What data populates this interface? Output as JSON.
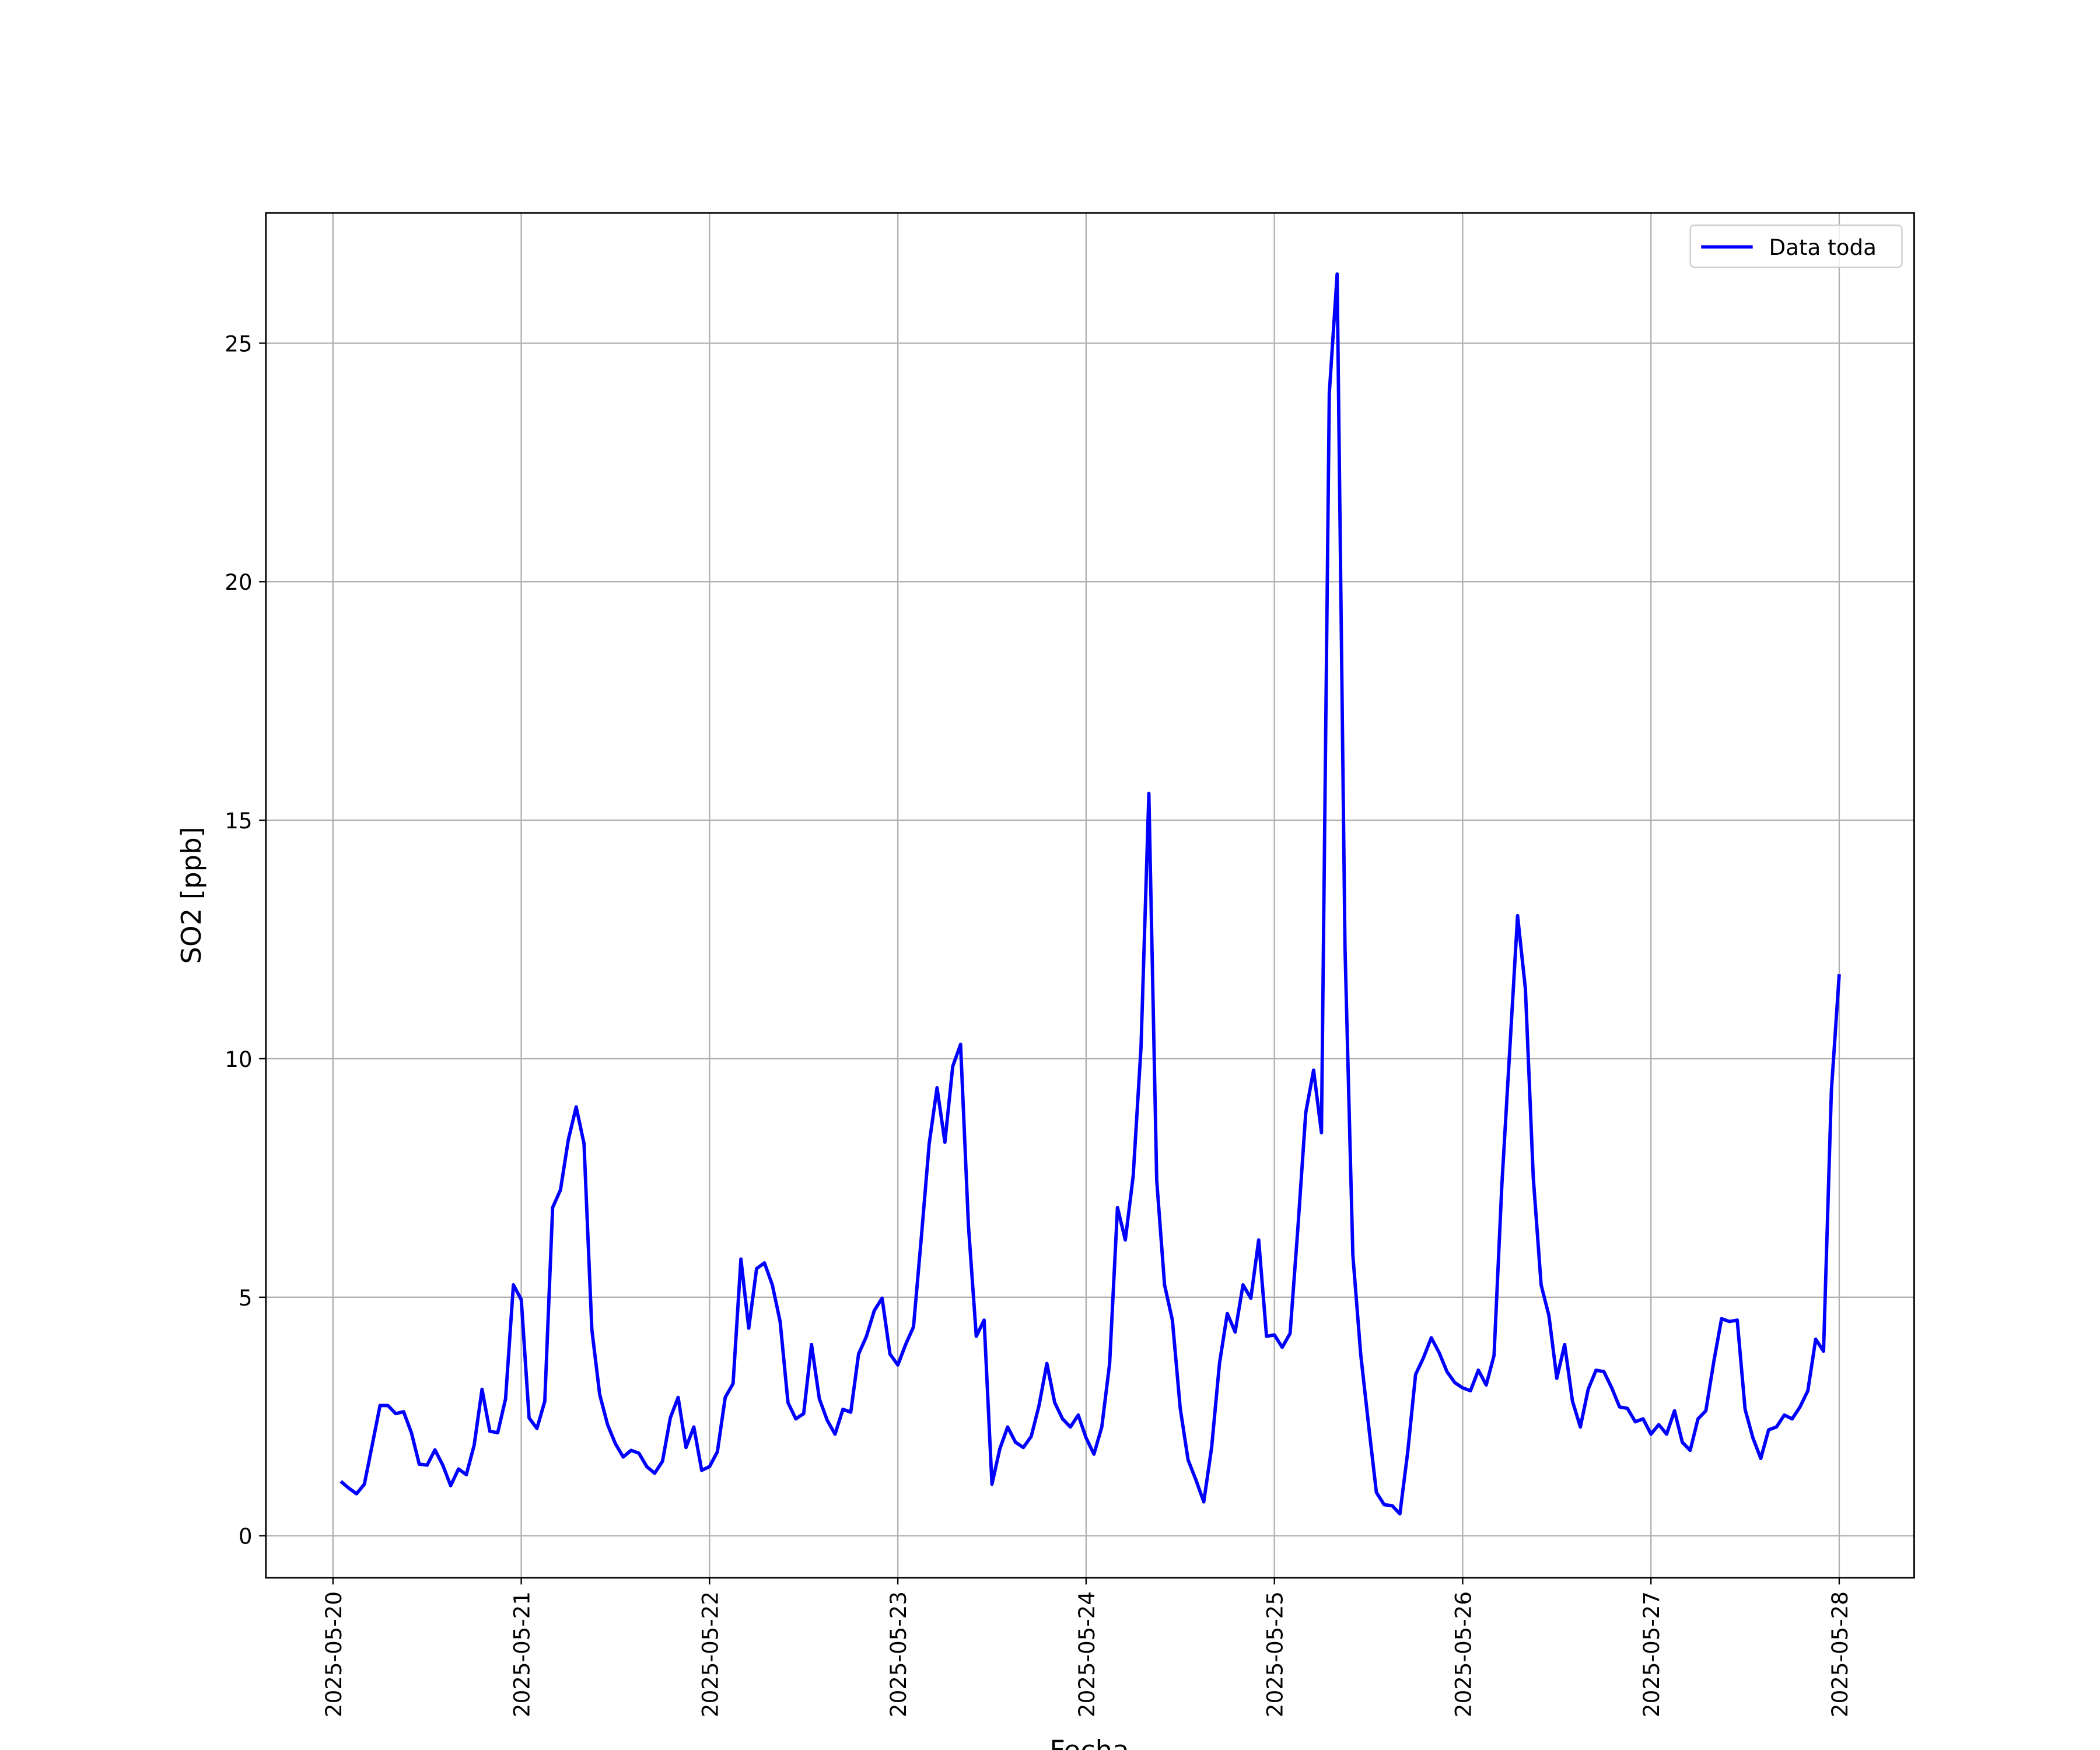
{
  "chart_data": {
    "type": "line",
    "xlabel": "Fecha",
    "ylabel": "SO2 [ppb]",
    "x": [
      "2025-05-20T01:00",
      "2025-05-20T02:00",
      "2025-05-20T03:00",
      "2025-05-20T04:00",
      "2025-05-20T05:00",
      "2025-05-20T06:00",
      "2025-05-20T07:00",
      "2025-05-20T08:00",
      "2025-05-20T09:00",
      "2025-05-20T10:00",
      "2025-05-20T11:00",
      "2025-05-20T12:00",
      "2025-05-20T13:00",
      "2025-05-20T14:00",
      "2025-05-20T15:00",
      "2025-05-20T16:00",
      "2025-05-20T17:00",
      "2025-05-20T18:00",
      "2025-05-20T19:00",
      "2025-05-20T20:00",
      "2025-05-20T21:00",
      "2025-05-20T22:00",
      "2025-05-20T23:00",
      "2025-05-21T00:00",
      "2025-05-21T01:00",
      "2025-05-21T02:00",
      "2025-05-21T03:00",
      "2025-05-21T04:00",
      "2025-05-21T05:00",
      "2025-05-21T06:00",
      "2025-05-21T07:00",
      "2025-05-21T08:00",
      "2025-05-21T09:00",
      "2025-05-21T10:00",
      "2025-05-21T11:00",
      "2025-05-21T12:00",
      "2025-05-21T13:00",
      "2025-05-21T14:00",
      "2025-05-21T15:00",
      "2025-05-21T16:00",
      "2025-05-21T17:00",
      "2025-05-21T18:00",
      "2025-05-21T19:00",
      "2025-05-21T20:00",
      "2025-05-21T21:00",
      "2025-05-21T22:00",
      "2025-05-21T23:00",
      "2025-05-22T00:00",
      "2025-05-22T01:00",
      "2025-05-22T02:00",
      "2025-05-22T03:00",
      "2025-05-22T04:00",
      "2025-05-22T05:00",
      "2025-05-22T06:00",
      "2025-05-22T07:00",
      "2025-05-22T08:00",
      "2025-05-22T09:00",
      "2025-05-22T10:00",
      "2025-05-22T11:00",
      "2025-05-22T12:00",
      "2025-05-22T13:00",
      "2025-05-22T14:00",
      "2025-05-22T15:00",
      "2025-05-22T16:00",
      "2025-05-22T17:00",
      "2025-05-22T18:00",
      "2025-05-22T19:00",
      "2025-05-22T20:00",
      "2025-05-22T21:00",
      "2025-05-22T22:00",
      "2025-05-22T23:00",
      "2025-05-23T00:00",
      "2025-05-23T01:00",
      "2025-05-23T02:00",
      "2025-05-23T03:00",
      "2025-05-23T04:00",
      "2025-05-23T05:00",
      "2025-05-23T06:00",
      "2025-05-23T07:00",
      "2025-05-23T08:00",
      "2025-05-23T09:00",
      "2025-05-23T10:00",
      "2025-05-23T11:00",
      "2025-05-23T12:00",
      "2025-05-23T13:00",
      "2025-05-23T14:00",
      "2025-05-23T15:00",
      "2025-05-23T16:00",
      "2025-05-23T17:00",
      "2025-05-23T18:00",
      "2025-05-23T19:00",
      "2025-05-23T20:00",
      "2025-05-23T21:00",
      "2025-05-23T22:00",
      "2025-05-23T23:00",
      "2025-05-24T00:00",
      "2025-05-24T01:00",
      "2025-05-24T02:00",
      "2025-05-24T03:00",
      "2025-05-24T04:00",
      "2025-05-24T05:00",
      "2025-05-24T06:00",
      "2025-05-24T07:00",
      "2025-05-24T08:00",
      "2025-05-24T09:00",
      "2025-05-24T10:00",
      "2025-05-24T11:00",
      "2025-05-24T12:00",
      "2025-05-24T13:00",
      "2025-05-24T14:00",
      "2025-05-24T15:00",
      "2025-05-24T16:00",
      "2025-05-24T17:00",
      "2025-05-24T18:00",
      "2025-05-24T19:00",
      "2025-05-24T20:00",
      "2025-05-24T21:00",
      "2025-05-24T22:00",
      "2025-05-24T23:00",
      "2025-05-25T00:00",
      "2025-05-25T01:00",
      "2025-05-25T02:00",
      "2025-05-25T03:00",
      "2025-05-25T04:00",
      "2025-05-25T05:00",
      "2025-05-25T06:00",
      "2025-05-25T07:00",
      "2025-05-25T08:00",
      "2025-05-25T09:00",
      "2025-05-25T10:00",
      "2025-05-25T11:00",
      "2025-05-25T12:00",
      "2025-05-25T13:00",
      "2025-05-25T14:00",
      "2025-05-25T15:00",
      "2025-05-25T16:00",
      "2025-05-25T17:00",
      "2025-05-25T18:00",
      "2025-05-25T19:00",
      "2025-05-25T20:00",
      "2025-05-25T21:00",
      "2025-05-25T22:00",
      "2025-05-25T23:00",
      "2025-05-26T00:00",
      "2025-05-26T01:00",
      "2025-05-26T02:00",
      "2025-05-26T03:00",
      "2025-05-26T04:00",
      "2025-05-26T05:00",
      "2025-05-26T06:00",
      "2025-05-26T07:00",
      "2025-05-26T08:00",
      "2025-05-26T09:00",
      "2025-05-26T10:00",
      "2025-05-26T11:00",
      "2025-05-26T12:00",
      "2025-05-26T13:00",
      "2025-05-26T14:00",
      "2025-05-26T15:00",
      "2025-05-26T16:00",
      "2025-05-26T17:00",
      "2025-05-26T18:00",
      "2025-05-26T19:00",
      "2025-05-26T20:00",
      "2025-05-26T21:00",
      "2025-05-26T22:00",
      "2025-05-26T23:00",
      "2025-05-27T00:00",
      "2025-05-27T01:00",
      "2025-05-27T02:00",
      "2025-05-27T03:00",
      "2025-05-27T04:00",
      "2025-05-27T05:00",
      "2025-05-27T06:00",
      "2025-05-27T07:00",
      "2025-05-27T08:00",
      "2025-05-27T09:00",
      "2025-05-27T10:00",
      "2025-05-27T11:00",
      "2025-05-27T12:00",
      "2025-05-27T13:00",
      "2025-05-27T14:00",
      "2025-05-27T15:00",
      "2025-05-27T16:00",
      "2025-05-27T17:00",
      "2025-05-27T18:00",
      "2025-05-27T19:00",
      "2025-05-27T20:00",
      "2025-05-27T21:00",
      "2025-05-27T22:00",
      "2025-05-27T23:00",
      "2025-05-28T00:00"
    ],
    "series": [
      {
        "name": "Data toda",
        "color": "#0000ff",
        "values": [
          1.14,
          1.0,
          0.88,
          1.08,
          1.9,
          2.73,
          2.73,
          2.56,
          2.6,
          2.16,
          1.5,
          1.48,
          1.8,
          1.48,
          1.05,
          1.4,
          1.28,
          1.9,
          3.07,
          2.19,
          2.16,
          2.87,
          5.26,
          4.95,
          2.47,
          2.25,
          2.82,
          6.88,
          7.25,
          8.3,
          8.99,
          8.22,
          4.32,
          2.96,
          2.33,
          1.93,
          1.65,
          1.79,
          1.73,
          1.45,
          1.31,
          1.56,
          2.47,
          2.9,
          1.85,
          2.28,
          1.37,
          1.45,
          1.76,
          2.9,
          3.19,
          5.8,
          4.35,
          5.6,
          5.72,
          5.26,
          4.49,
          2.79,
          2.45,
          2.56,
          4.01,
          2.87,
          2.42,
          2.13,
          2.65,
          2.59,
          3.81,
          4.18,
          4.72,
          4.98,
          3.81,
          3.58,
          4.01,
          4.38,
          6.26,
          8.22,
          9.39,
          8.25,
          9.84,
          10.3,
          6.51,
          4.18,
          4.52,
          1.08,
          1.82,
          2.28,
          1.96,
          1.85,
          2.08,
          2.73,
          3.61,
          2.79,
          2.45,
          2.28,
          2.53,
          2.05,
          1.71,
          2.28,
          3.61,
          6.88,
          6.2,
          7.54,
          10.24,
          15.56,
          7.45,
          5.26,
          4.52,
          2.67,
          1.59,
          1.17,
          0.71,
          1.85,
          3.61,
          4.66,
          4.27,
          5.26,
          4.98,
          6.2,
          4.18,
          4.21,
          3.95,
          4.24,
          6.46,
          8.87,
          9.76,
          8.45,
          23.95,
          26.45,
          12.34,
          5.89,
          3.81,
          2.33,
          0.91,
          0.65,
          0.63,
          0.46,
          1.76,
          3.38,
          3.73,
          4.15,
          3.84,
          3.44,
          3.21,
          3.1,
          3.04,
          3.47,
          3.16,
          3.78,
          7.37,
          10.18,
          13.0,
          11.46,
          7.51,
          5.26,
          4.61,
          3.3,
          4.01,
          2.82,
          2.28,
          3.07,
          3.47,
          3.44,
          3.1,
          2.7,
          2.67,
          2.39,
          2.45,
          2.13,
          2.33,
          2.13,
          2.62,
          1.96,
          1.79,
          2.45,
          2.62,
          3.64,
          4.55,
          4.49,
          4.52,
          2.65,
          2.05,
          1.62,
          2.22,
          2.28,
          2.53,
          2.45,
          2.7,
          3.04,
          4.12,
          3.87,
          9.33,
          11.77
        ]
      }
    ],
    "xlim": [
      "2025-05-19T15:27",
      "2025-05-28T09:33"
    ],
    "xticks": [
      "2025-05-20",
      "2025-05-21",
      "2025-05-22",
      "2025-05-23",
      "2025-05-24",
      "2025-05-25",
      "2025-05-26",
      "2025-05-27",
      "2025-05-28"
    ],
    "ylim": [
      -0.88,
      27.73
    ],
    "yticks": [
      0,
      5,
      10,
      15,
      20,
      25
    ],
    "grid": true,
    "legend": "upper right"
  }
}
